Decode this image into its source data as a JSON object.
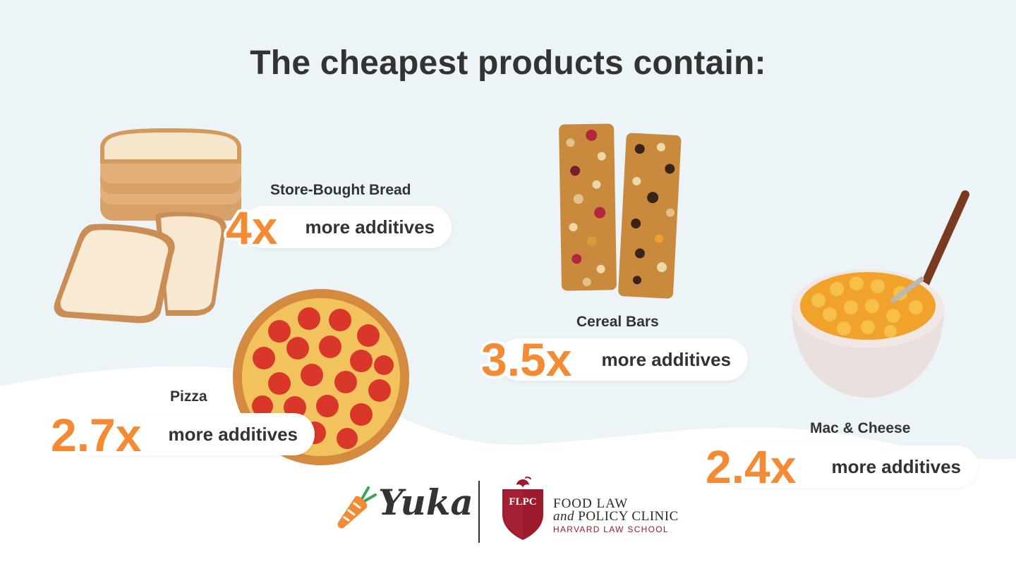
{
  "title": "The cheapest products contain:",
  "items": [
    {
      "name": "Store-Bought Bread",
      "multiplier": "4x",
      "suffix": "more additives",
      "icon": "bread-icon"
    },
    {
      "name": "Pizza",
      "multiplier": "2.7x",
      "suffix": "more additives",
      "icon": "pizza-icon"
    },
    {
      "name": "Cereal Bars",
      "multiplier": "3.5x",
      "suffix": "more additives",
      "icon": "cereal-bars-icon"
    },
    {
      "name": "Mac & Cheese",
      "multiplier": "2.4x",
      "suffix": "more additives",
      "icon": "mac-and-cheese-icon"
    }
  ],
  "logos": {
    "yuka": "Yuka",
    "flpc_badge": "FLPC",
    "flpc_line1": "FOOD LAW",
    "flpc_and": "and",
    "flpc_line2": "POLICY CLINIC",
    "flpc_line3": "HARVARD LAW SCHOOL"
  },
  "colors": {
    "accent": "#f58a34",
    "text": "#333333",
    "background": "#ecf4f8",
    "flpc_red": "#9c1b2c"
  }
}
